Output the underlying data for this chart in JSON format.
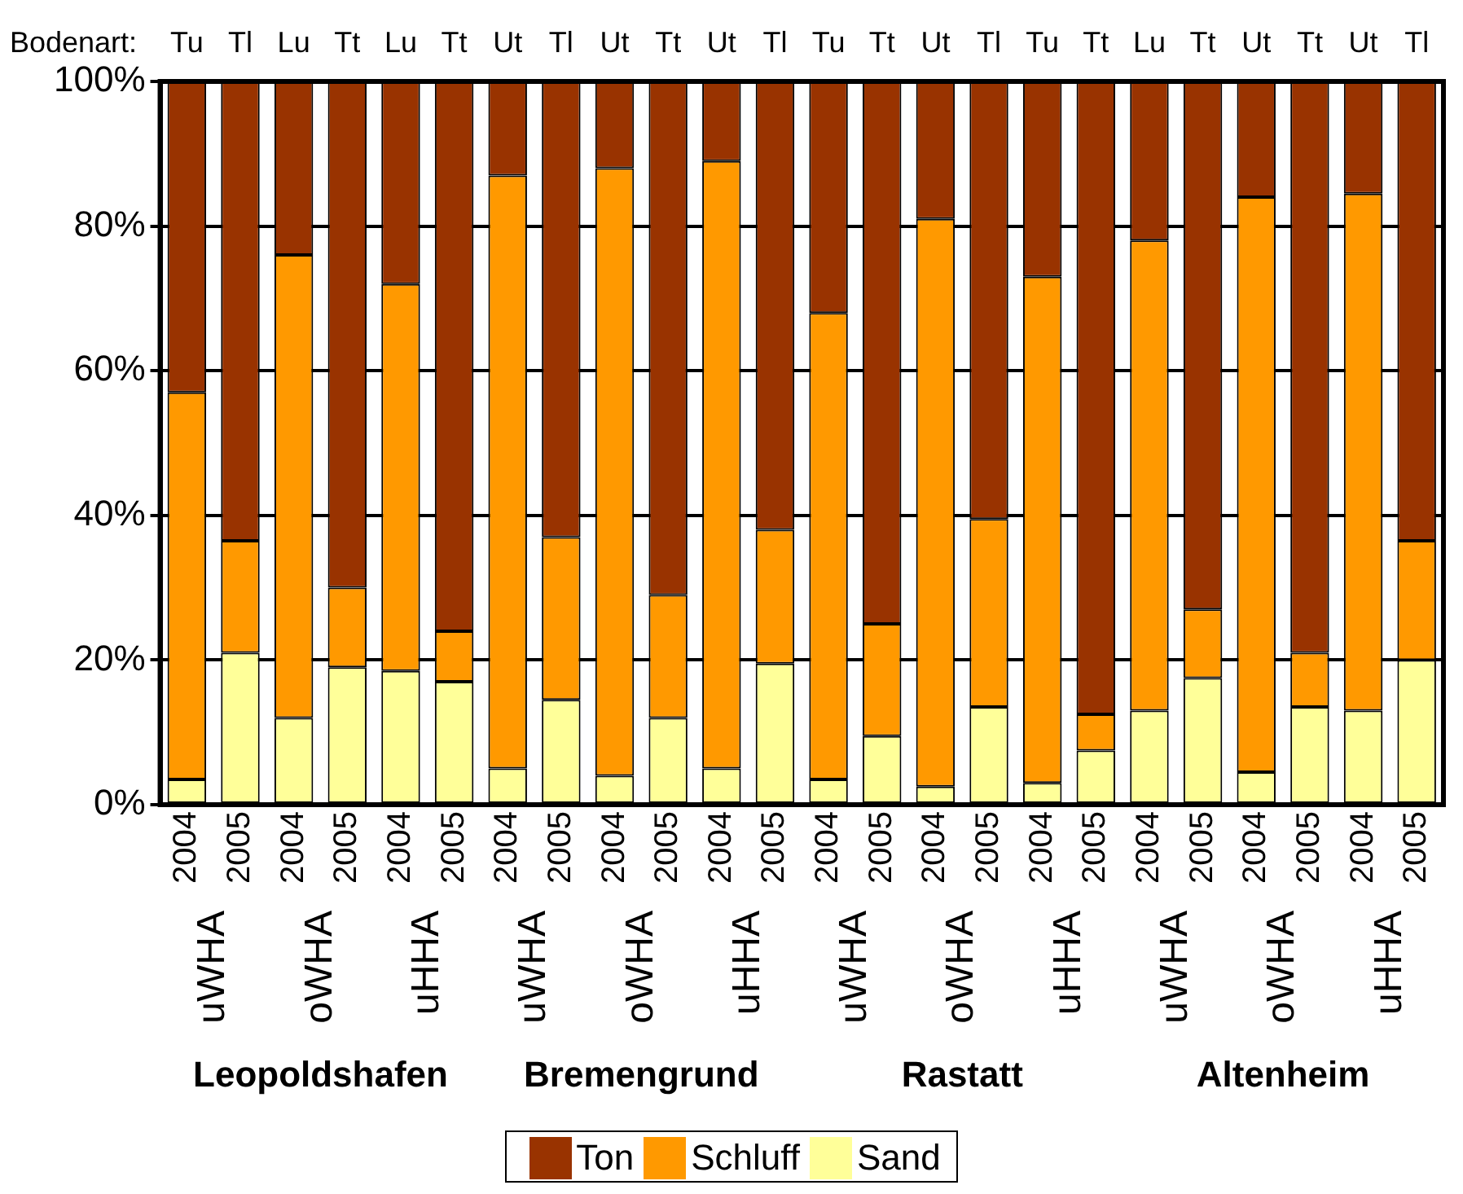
{
  "chart_data": {
    "type": "bar",
    "stacked": true,
    "categories": [
      "2004",
      "2005",
      "2004",
      "2005",
      "2004",
      "2005",
      "2004",
      "2005",
      "2004",
      "2005",
      "2004",
      "2005",
      "2004",
      "2005",
      "2004",
      "2005",
      "2004",
      "2005",
      "2004",
      "2005",
      "2004",
      "2005",
      "2004",
      "2005"
    ],
    "series": [
      {
        "name": "Sand",
        "color": "#ffff99",
        "values": [
          3.5,
          21,
          12,
          19,
          18.5,
          17,
          5,
          14.5,
          4,
          12,
          5,
          19.5,
          3.5,
          9.5,
          2.5,
          13.5,
          3,
          7.5,
          13,
          17.5,
          4.5,
          13.5,
          13,
          20
        ]
      },
      {
        "name": "Schluff",
        "color": "#ff9900",
        "values": [
          53.5,
          15.5,
          64,
          11,
          53.5,
          7,
          82,
          22.5,
          84,
          17,
          84,
          18.5,
          64.5,
          15.5,
          78.5,
          26,
          70,
          5,
          65,
          9.5,
          79.5,
          7.5,
          71.5,
          16.5
        ]
      },
      {
        "name": "Ton",
        "color": "#993300",
        "values": [
          43,
          63.5,
          24,
          70,
          28,
          76,
          13,
          63,
          12,
          71,
          11,
          62,
          32,
          75,
          19,
          60.5,
          27,
          87.5,
          22,
          73,
          16,
          79,
          15.5,
          63.5
        ]
      }
    ],
    "ylim": [
      0,
      100
    ],
    "yticks": [
      {
        "value": 0,
        "label": "0%"
      },
      {
        "value": 20,
        "label": "20%"
      },
      {
        "value": 40,
        "label": "40%"
      },
      {
        "value": 60,
        "label": "60%"
      },
      {
        "value": 80,
        "label": "80%"
      },
      {
        "value": 100,
        "label": "100%"
      }
    ],
    "grid": "y",
    "legend": "bottom",
    "annotations": [
      "Bodenart:",
      "Tu",
      "Tl",
      "Lu",
      "Tt",
      "Lu",
      "Tt",
      "Ut",
      "Tl",
      "Ut",
      "Tt",
      "Ut",
      "Tl",
      "Tu",
      "Tt",
      "Ut",
      "Tl",
      "Tu",
      "Tt",
      "Lu",
      "Tt",
      "Ut",
      "Tt",
      "Ut",
      "Tl",
      "uWHA",
      "oWHA",
      "uHHA",
      "uWHA",
      "oWHA",
      "uHHA",
      "uWHA",
      "oWHA",
      "uHHA",
      "uWHA",
      "oWHA",
      "uHHA",
      "Leopoldshafen",
      "Bremengrund",
      "Rastatt",
      "Altenheim"
    ]
  }
}
